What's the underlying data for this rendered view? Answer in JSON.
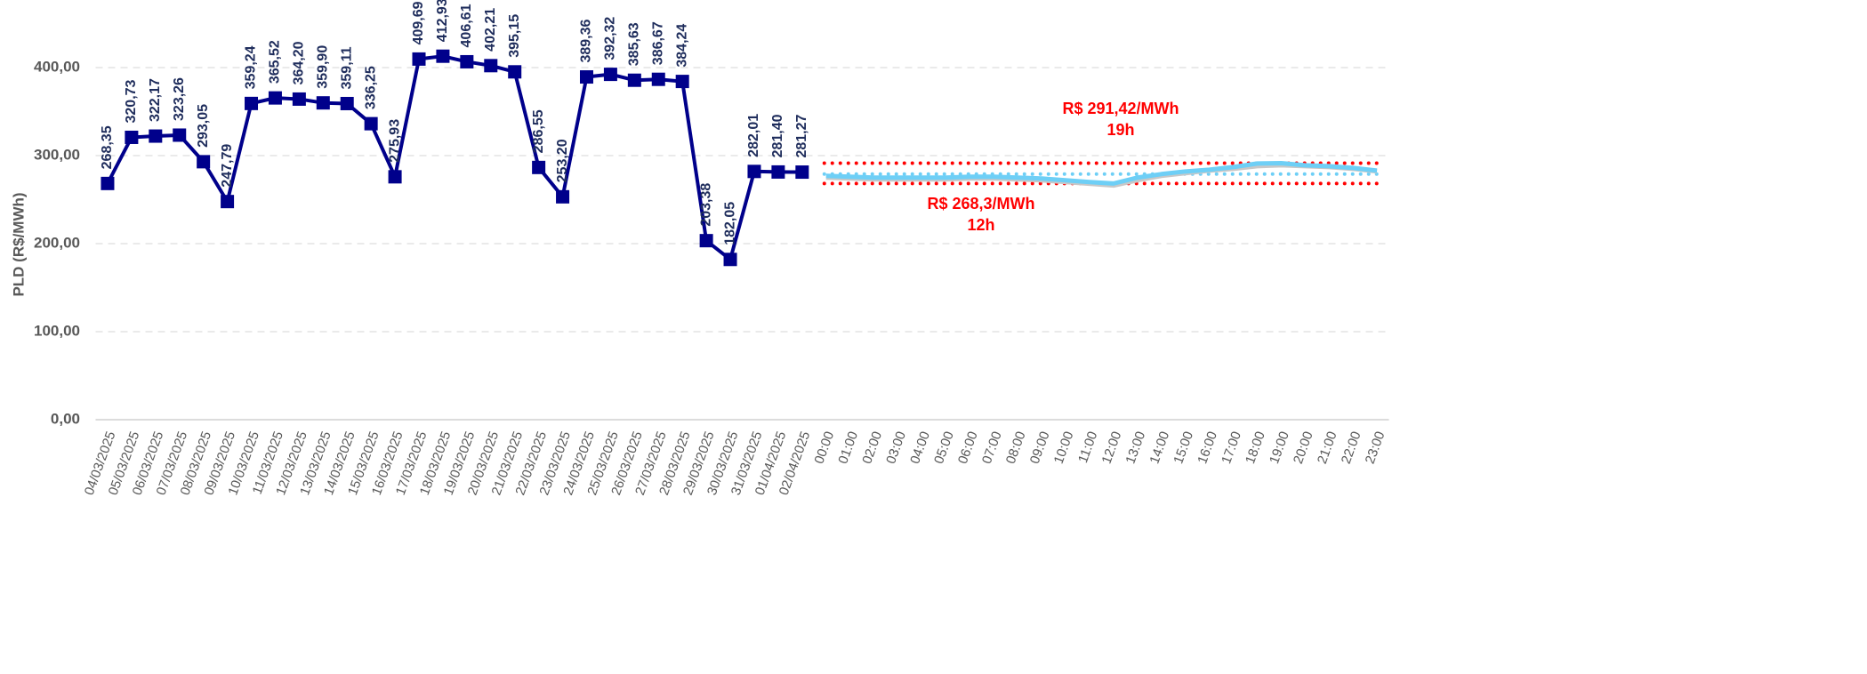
{
  "chart_data": {
    "type": "line",
    "y_label": "PLD (R$/MWh)",
    "categories": [
      "04/03/2025",
      "05/03/2025",
      "06/03/2025",
      "07/03/2025",
      "08/03/2025",
      "09/03/2025",
      "10/03/2025",
      "11/03/2025",
      "12/03/2025",
      "13/03/2025",
      "14/03/2025",
      "15/03/2025",
      "16/03/2025",
      "17/03/2025",
      "18/03/2025",
      "19/03/2025",
      "20/03/2025",
      "21/03/2025",
      "22/03/2025",
      "23/03/2025",
      "24/03/2025",
      "25/03/2025",
      "26/03/2025",
      "27/03/2025",
      "28/03/2025",
      "29/03/2025",
      "30/03/2025",
      "31/03/2025",
      "01/04/2025",
      "02/04/2025",
      "00:00",
      "01:00",
      "02:00",
      "03:00",
      "04:00",
      "05:00",
      "06:00",
      "07:00",
      "08:00",
      "09:00",
      "10:00",
      "11:00",
      "12:00",
      "13:00",
      "14:00",
      "15:00",
      "16:00",
      "17:00",
      "18:00",
      "19:00",
      "20:00",
      "21:00",
      "22:00",
      "23:00"
    ],
    "series": [
      {
        "color": "#00008b",
        "markers": true,
        "values": [
          268.35,
          320.73,
          322.17,
          323.26,
          293.05,
          247.79,
          359.24,
          365.52,
          364.2,
          359.9,
          359.11,
          336.25,
          275.93,
          409.69,
          412.93,
          406.61,
          402.21,
          395.15,
          286.55,
          253.2,
          389.36,
          392.32,
          385.63,
          386.67,
          384.24,
          203.38,
          182.05,
          282.01,
          281.4,
          281.27,
          null,
          null,
          null,
          null,
          null,
          null,
          null,
          null,
          null,
          null,
          null,
          null,
          null,
          null,
          null,
          null,
          null,
          null,
          null,
          null,
          null,
          null,
          null,
          null
        ],
        "value_labels": [
          "268,35",
          "320,73",
          "322,17",
          "323,26",
          "293,05",
          "247,79",
          "359,24",
          "365,52",
          "364,20",
          "359,90",
          "359,11",
          "336,25",
          "275,93",
          "409,69",
          "412,93",
          "406,61",
          "402,21",
          "395,15",
          "286,55",
          "253,20",
          "389,36",
          "392,32",
          "385,63",
          "386,67",
          "384,24",
          "203,38",
          "182,05",
          "282,01",
          "281,40",
          "281,27",
          null,
          null,
          null,
          null,
          null,
          null,
          null,
          null,
          null,
          null,
          null,
          null,
          null,
          null,
          null,
          null,
          null,
          null,
          null,
          null,
          null,
          null,
          null,
          null
        ]
      },
      {
        "color": "#c8c8c8",
        "markers": false,
        "values": [
          null,
          null,
          null,
          null,
          null,
          null,
          null,
          null,
          null,
          null,
          null,
          null,
          null,
          null,
          null,
          null,
          null,
          null,
          null,
          null,
          null,
          null,
          null,
          null,
          null,
          null,
          null,
          null,
          null,
          null,
          275,
          274,
          273,
          273,
          273,
          273,
          274,
          274,
          273,
          272,
          270,
          268,
          266,
          272,
          277,
          280,
          283,
          285,
          288,
          289,
          288,
          287,
          285,
          282
        ]
      },
      {
        "color": "#6ecff6",
        "markers": false,
        "values": [
          null,
          null,
          null,
          null,
          null,
          null,
          null,
          null,
          null,
          null,
          null,
          null,
          null,
          null,
          null,
          null,
          null,
          null,
          null,
          null,
          null,
          null,
          null,
          null,
          null,
          null,
          null,
          null,
          null,
          null,
          277,
          276,
          275,
          275,
          275,
          275,
          276,
          276,
          275,
          274,
          272,
          270,
          268.3,
          275,
          279,
          282,
          284,
          287,
          291,
          291.42,
          289,
          288,
          286,
          283
        ]
      }
    ],
    "reference_lines": [
      {
        "value": 291.42,
        "color": "#ff0000"
      },
      {
        "value": 279,
        "color": "#6ecff6"
      },
      {
        "value": 268.3,
        "color": "#ff0000"
      }
    ],
    "annotations": [
      {
        "text": "R$ 291,42/MWh",
        "subtext": "19h",
        "color": "#ff0000"
      },
      {
        "text": "R$ 268,3/MWh",
        "subtext": "12h",
        "color": "#ff0000"
      }
    ],
    "ylim": [
      0,
      450
    ],
    "yticks": [
      {
        "value": 0,
        "label": "0,00"
      },
      {
        "value": 100,
        "label": "100,00"
      },
      {
        "value": 200,
        "label": "200,00"
      },
      {
        "value": 300,
        "label": "300,00"
      },
      {
        "value": 400,
        "label": "400,00"
      }
    ],
    "grid": true
  }
}
